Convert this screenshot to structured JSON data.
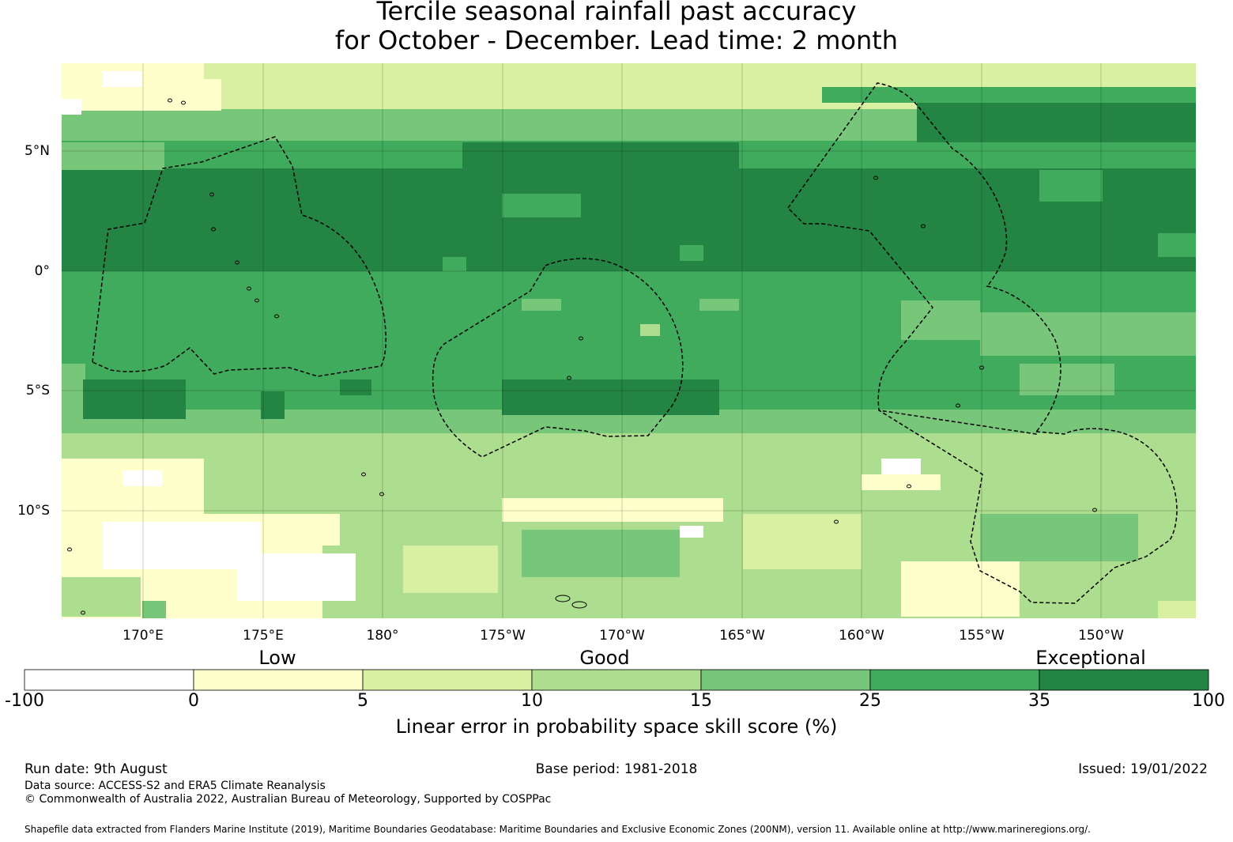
{
  "title": {
    "line1": "Tercile seasonal rainfall past accuracy",
    "line2": "for October - December. Lead time: 2 month"
  },
  "map": {
    "lat_labels": [
      "5°N",
      "0°",
      "5°S",
      "10°S"
    ],
    "lon_labels": [
      "170°E",
      "175°E",
      "180°",
      "175°W",
      "170°W",
      "165°W",
      "160°W",
      "155°W",
      "150°W"
    ],
    "gridlines": true,
    "boundaries": "dashed EEZ outlines"
  },
  "colorbar": {
    "categories": [
      "Low",
      "Good",
      "Exceptional"
    ],
    "ticks": [
      "-100",
      "0",
      "5",
      "10",
      "15",
      "25",
      "35",
      "100"
    ],
    "colors": [
      "#ffffff",
      "#ffffcc",
      "#d9f0a3",
      "#addd8e",
      "#78c679",
      "#41ab5d",
      "#238443"
    ],
    "label": "Linear error in probability space skill score (%)"
  },
  "footer": {
    "run_date": "Run date: 9th August",
    "base_period": "Base period: 1981-2018",
    "issued": "Issued: 19/01/2022",
    "data_source": "Data source: ACCESS-S2 and ERA5 Climate Reanalysis",
    "copyright": "© Commonwealth of Australia 2022, Australian Bureau of Meteorology, Supported by COSPPac",
    "shapefile": "Shapefile data extracted from Flanders Marine Institute (2019), Maritime Boundaries Geodatabase: Maritime Boundaries and Exclusive Economic Zones (200NM), version 11. Available online at http://www.marineregions.org/."
  }
}
